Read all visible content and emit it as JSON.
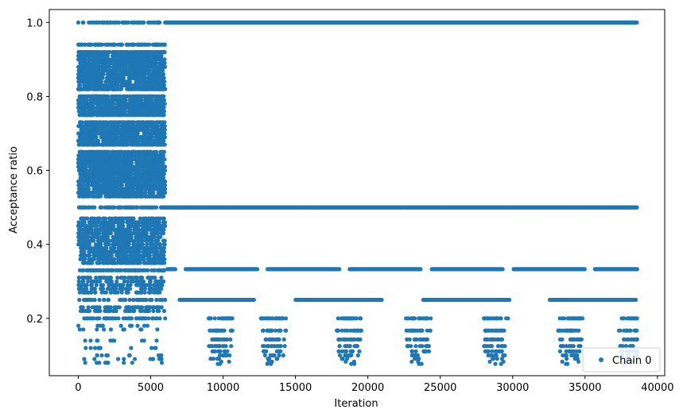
{
  "chart_data": {
    "type": "scatter",
    "title": "",
    "xlabel": "Iteration",
    "ylabel": "Acceptance ratio",
    "xlim": [
      -2000,
      40500
    ],
    "ylim": [
      0.045,
      1.035
    ],
    "xticks": [
      0,
      5000,
      10000,
      15000,
      20000,
      25000,
      30000,
      35000,
      40000
    ],
    "xtick_labels": [
      "0",
      "5000",
      "10000",
      "15000",
      "20000",
      "25000",
      "30000",
      "35000",
      "40000"
    ],
    "yticks": [
      0.2,
      0.4,
      0.6,
      0.8,
      1.0
    ],
    "ytick_labels": [
      "0.2",
      "0.4",
      "0.6",
      "0.8",
      "1.0"
    ],
    "grid": false,
    "legend_position": "bottom-right",
    "color": "#1f77b4",
    "series": [
      {
        "name": "Chain 0",
        "marker": "dot",
        "x_range": [
          0,
          38600
        ],
        "early_phase_end": 6000,
        "early_levels": [
          1.0,
          0.94,
          0.92,
          0.91,
          0.9,
          0.89,
          0.88,
          0.87,
          0.86,
          0.85,
          0.84,
          0.83,
          0.82,
          0.8,
          0.79,
          0.78,
          0.77,
          0.76,
          0.75,
          0.73,
          0.72,
          0.71,
          0.7,
          0.69,
          0.68,
          0.67,
          0.65,
          0.64,
          0.63,
          0.62,
          0.61,
          0.6,
          0.59,
          0.58,
          0.57,
          0.56,
          0.55,
          0.54,
          0.53,
          0.5,
          0.47,
          0.46,
          0.45,
          0.44,
          0.43,
          0.42,
          0.41,
          0.4,
          0.39,
          0.38,
          0.37,
          0.36,
          0.35,
          0.33,
          0.31,
          0.3,
          0.29,
          0.28,
          0.27,
          0.25,
          0.23,
          0.22,
          0.2,
          0.18,
          0.17,
          0.14,
          0.12,
          0.1,
          0.09,
          0.08
        ],
        "late_levels": [
          1.0,
          0.5,
          0.333,
          0.25,
          0.2,
          0.167,
          0.143,
          0.125,
          0.111,
          0.1,
          0.091,
          0.083,
          0.077
        ],
        "late_dense_levels": [
          1.0,
          0.5
        ],
        "late_cluster_centers": [
          9800,
          13500,
          18700,
          23500,
          28800,
          34000,
          38200
        ]
      }
    ]
  }
}
